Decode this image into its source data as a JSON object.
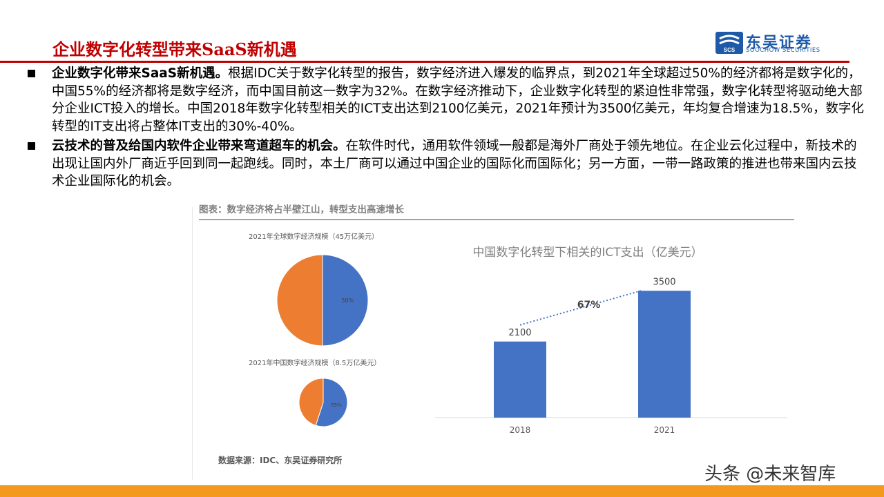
{
  "header": {
    "title": "企业数字化转型带来SaaS新机遇",
    "logo_cn": "东吴证券",
    "logo_en": "SOOCHOW SECURITIES",
    "logo_mark": "SCS"
  },
  "bullets": [
    {
      "bold": "企业数字化带来SaaS新机遇。",
      "text": "根据IDC关于数字化转型的报告，数字经济进入爆发的临界点，到2021年全球超过50%的经济都将是数字化的，中国55%的经济都将是数字经济，而中国目前这一数字为32%。在数字经济推动下，企业数字化转型的紧迫性非常强，数字化转型将驱动绝大部分企业ICT投入的增长。中国2018年数字化转型相关的ICT支出达到2100亿美元，2021年预计为3500亿美元，年均复合增速为18.5%，数字化转型的IT支出将占整体IT支出的30%-40%。"
    },
    {
      "bold": "云技术的普及给国内软件企业带来弯道超车的机会。",
      "text": "在软件时代，通用软件领域一般都是海外厂商处于领先地位。在企业云化过程中，新技术的出现让国内外厂商近乎回到同一起跑线。同时，本土厂商可以通过中国企业的国际化而国际化；另一方面，一带一路政策的推进也带来国内云技术企业国际化的机会。"
    }
  ],
  "figure": {
    "title": "图表：数字经济将占半壁江山，转型支出高速增长",
    "source": "数据来源：IDC、东吴证券研究所"
  },
  "chart_data": [
    {
      "type": "pie",
      "title": "2021年全球数字经济规模（45万亿美元）",
      "slices": [
        {
          "label": "50%",
          "value": 50,
          "color": "#4472c4"
        },
        {
          "label": "",
          "value": 50,
          "color": "#ed7d31"
        }
      ]
    },
    {
      "type": "pie",
      "title": "2021年中国数字经济规模（8.5万亿美元）",
      "slices": [
        {
          "label": "55%",
          "value": 55,
          "color": "#4472c4"
        },
        {
          "label": "",
          "value": 45,
          "color": "#ed7d31"
        }
      ]
    },
    {
      "type": "bar",
      "title": "中国数字化转型下相关的ICT支出（亿美元）",
      "categories": [
        "2018",
        "2021"
      ],
      "values": [
        2100,
        3500
      ],
      "data_labels": [
        "2100",
        "3500"
      ],
      "annotation": "67%",
      "ylim": [
        0,
        4000
      ],
      "color": "#4472c4"
    }
  ],
  "watermark": "头条 @未来智库",
  "colors": {
    "title_red": "#c00000",
    "accent_orange": "#f39a1e",
    "brand_blue": "#1e5aa8"
  }
}
